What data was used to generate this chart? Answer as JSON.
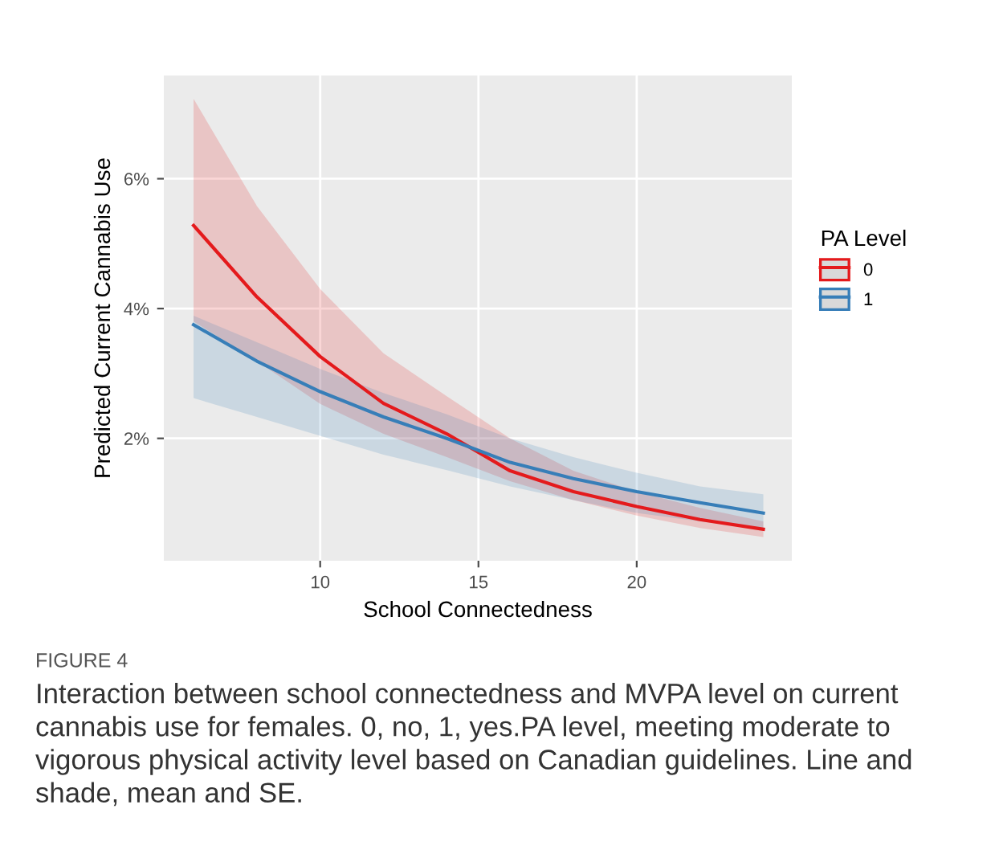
{
  "chart_data": {
    "type": "line",
    "xlabel": "School Connectedness",
    "ylabel": "Predicted Current Cannabis Use",
    "legend_title": "PA Level",
    "legend": "right",
    "x": [
      6,
      8,
      10,
      12,
      14,
      16,
      18,
      20,
      22,
      24
    ],
    "series": [
      {
        "name": "0",
        "color": "#e41a1c",
        "values": [
          5.28,
          4.18,
          3.26,
          2.54,
          2.07,
          1.5,
          1.18,
          0.95,
          0.75,
          0.6
        ],
        "lower": [
          3.8,
          3.19,
          2.53,
          2.07,
          1.71,
          1.34,
          1.05,
          0.81,
          0.62,
          0.48
        ],
        "upper": [
          7.23,
          5.58,
          4.3,
          3.31,
          2.65,
          2.0,
          1.5,
          1.18,
          0.93,
          0.72
        ]
      },
      {
        "name": "1",
        "color": "#377eb8",
        "values": [
          3.75,
          3.19,
          2.72,
          2.33,
          2.0,
          1.63,
          1.38,
          1.18,
          1.01,
          0.85
        ],
        "lower": [
          2.62,
          2.33,
          2.04,
          1.75,
          1.51,
          1.26,
          1.05,
          0.85,
          0.72,
          0.6
        ],
        "upper": [
          3.89,
          3.48,
          3.07,
          2.7,
          2.37,
          2.0,
          1.71,
          1.47,
          1.26,
          1.14
        ]
      }
    ],
    "xlim": [
      5.06,
      24.9
    ],
    "ylim": [
      0.115,
      7.59
    ],
    "xticks": [
      10,
      15,
      20
    ],
    "yticks": [
      {
        "value": 2,
        "label": "2%"
      },
      {
        "value": 4,
        "label": "4%"
      },
      {
        "value": 6,
        "label": "6%"
      }
    ],
    "grid": true,
    "annotations": [
      "FIGURE 4",
      "Interaction between school connectedness and MVPA level on current cannabis use for females. 0, no, 1, yes.PA level, meeting moderate to vigorous physical activity level based on Canadian guidelines. Line and shade, mean and SE."
    ]
  }
}
